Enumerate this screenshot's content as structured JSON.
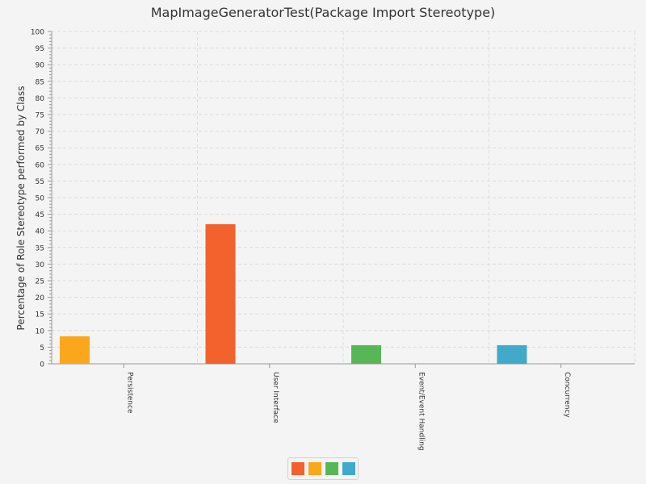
{
  "chart_data": {
    "type": "bar",
    "title": "MapImageGeneratorTest(Package Import Stereotype)",
    "xlabel": "",
    "ylabel": "Percentage of Role Stereotype performed by Class",
    "ylim": [
      0,
      100
    ],
    "y_major_step": 5,
    "grid": true,
    "legend_position": "bottom",
    "categories": [
      "Persistence",
      "User Interface",
      "Event/Event Handling",
      "Concurrency"
    ],
    "series": [
      {
        "color": "#f3622d",
        "values": [
          0,
          42,
          0,
          0
        ]
      },
      {
        "color": "#fba71b",
        "values": [
          8.3,
          0,
          0,
          0
        ]
      },
      {
        "color": "#57b757",
        "values": [
          0,
          0,
          5.6,
          0
        ]
      },
      {
        "color": "#41a9c9",
        "values": [
          0,
          0,
          0,
          5.6
        ]
      }
    ]
  }
}
